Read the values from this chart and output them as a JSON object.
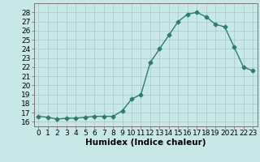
{
  "x": [
    0,
    1,
    2,
    3,
    4,
    5,
    6,
    7,
    8,
    9,
    10,
    11,
    12,
    13,
    14,
    15,
    16,
    17,
    18,
    19,
    20,
    21,
    22,
    23
  ],
  "y": [
    16.6,
    16.5,
    16.3,
    16.4,
    16.4,
    16.5,
    16.6,
    16.6,
    16.6,
    17.2,
    18.5,
    19.0,
    22.5,
    24.0,
    25.5,
    27.0,
    27.8,
    28.0,
    27.5,
    26.7,
    26.4,
    24.2,
    22.0,
    21.6
  ],
  "line_color": "#2e7d6e",
  "marker": "D",
  "markersize": 2.5,
  "linewidth": 1.0,
  "bg_color": "#c8e8e8",
  "grid_color": "#b0cccc",
  "xlabel": "Humidex (Indice chaleur)",
  "xlabel_fontsize": 7.5,
  "ylabel_fontsize": 6.5,
  "tick_fontsize": 6.5,
  "ylim": [
    15.5,
    29.0
  ],
  "xlim": [
    -0.5,
    23.5
  ],
  "yticks": [
    16,
    17,
    18,
    19,
    20,
    21,
    22,
    23,
    24,
    25,
    26,
    27,
    28
  ],
  "xticks": [
    0,
    1,
    2,
    3,
    4,
    5,
    6,
    7,
    8,
    9,
    10,
    11,
    12,
    13,
    14,
    15,
    16,
    17,
    18,
    19,
    20,
    21,
    22,
    23
  ]
}
